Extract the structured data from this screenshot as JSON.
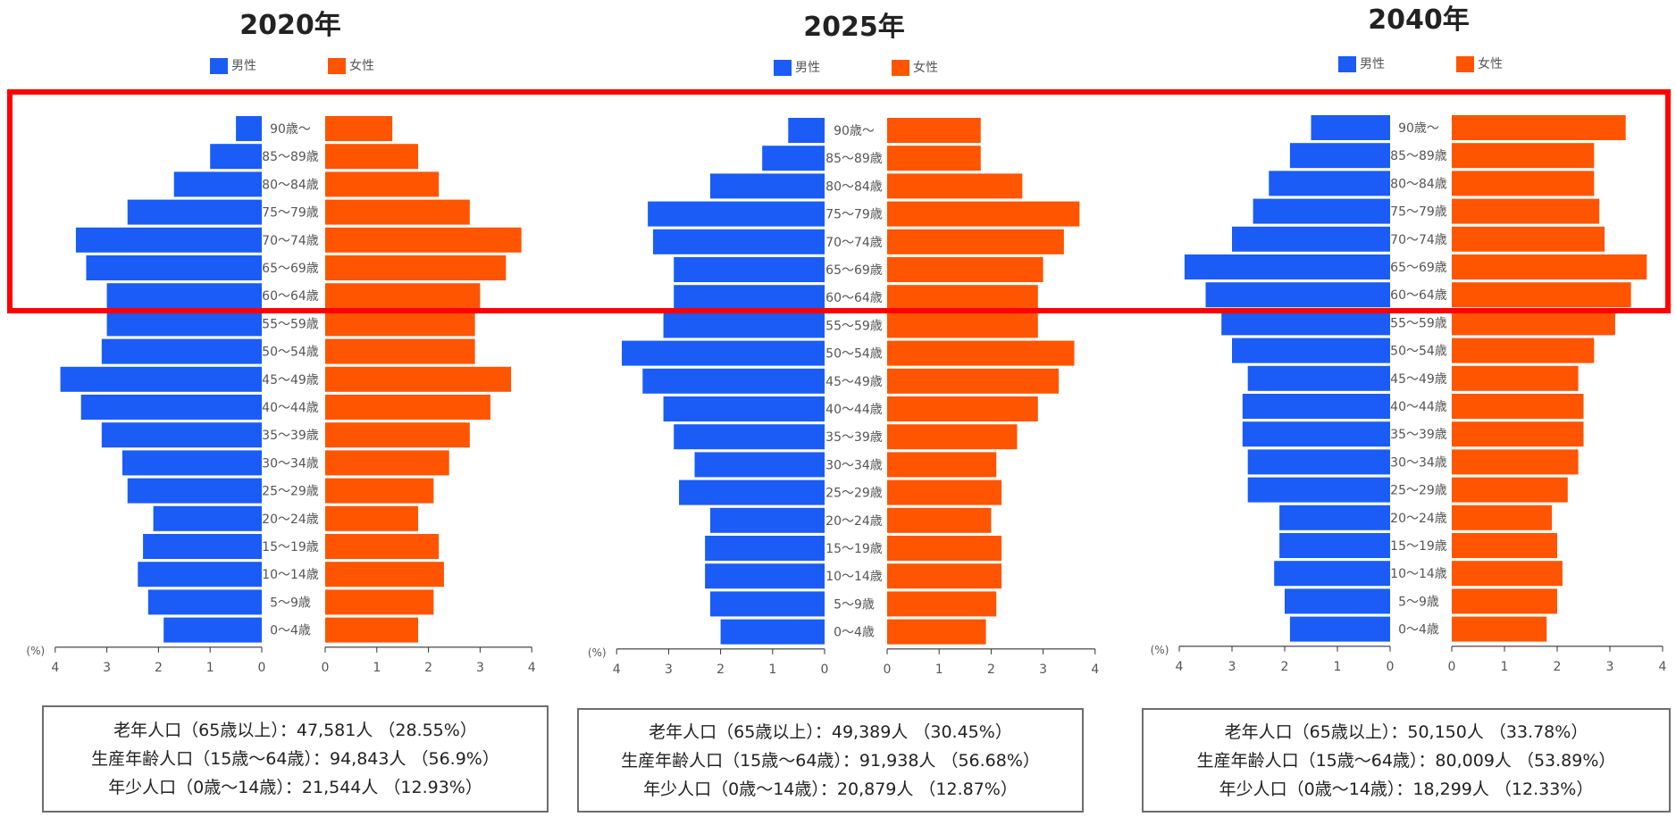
{
  "age_groups": [
    "90歳～",
    "85～89歳",
    "80～84歳",
    "75～79歳",
    "70～74歳",
    "65～69歳",
    "60～64歳",
    "55～59歳",
    "50～54歳",
    "45～49歳",
    "40～44歳",
    "35～39歳",
    "30～34歳",
    "25～29歳",
    "20～24歳",
    "15～19歳",
    "10～14歳",
    "5～9歳",
    "0～4歳"
  ],
  "legend": {
    "male": "男性",
    "female": "女性"
  },
  "axis": {
    "unit": "(%)",
    "ticks_left": [
      "4",
      "3",
      "2",
      "1",
      "0"
    ],
    "ticks_right": [
      "0",
      "1",
      "2",
      "3",
      "4"
    ]
  },
  "colors": {
    "male": "#1a5cf5",
    "female": "#ff5400",
    "highlight": "#ff0000"
  },
  "chart_data": [
    {
      "type": "bar",
      "title": "2020年",
      "xlim": [
        0,
        4
      ],
      "categories": [
        "90歳～",
        "85～89歳",
        "80～84歳",
        "75～79歳",
        "70～74歳",
        "65～69歳",
        "60～64歳",
        "55～59歳",
        "50～54歳",
        "45～49歳",
        "40～44歳",
        "35～39歳",
        "30～34歳",
        "25～29歳",
        "20～24歳",
        "15～19歳",
        "10～14歳",
        "5～9歳",
        "0～4歳"
      ],
      "series": [
        {
          "name": "男性",
          "values": [
            0.5,
            1.0,
            1.7,
            2.6,
            3.6,
            3.4,
            3.0,
            3.0,
            3.1,
            3.9,
            3.5,
            3.1,
            2.7,
            2.6,
            2.1,
            2.3,
            2.4,
            2.2,
            1.9
          ]
        },
        {
          "name": "女性",
          "values": [
            1.3,
            1.8,
            2.2,
            2.8,
            3.8,
            3.5,
            3.0,
            2.9,
            2.9,
            3.6,
            3.2,
            2.8,
            2.4,
            2.1,
            1.8,
            2.2,
            2.3,
            2.1,
            1.8
          ]
        }
      ]
    },
    {
      "type": "bar",
      "title": "2025年",
      "xlim": [
        0,
        4
      ],
      "categories": [
        "90歳～",
        "85～89歳",
        "80～84歳",
        "75～79歳",
        "70～74歳",
        "65～69歳",
        "60～64歳",
        "55～59歳",
        "50～54歳",
        "45～49歳",
        "40～44歳",
        "35～39歳",
        "30～34歳",
        "25～29歳",
        "20～24歳",
        "15～19歳",
        "10～14歳",
        "5～9歳",
        "0～4歳"
      ],
      "series": [
        {
          "name": "男性",
          "values": [
            0.7,
            1.2,
            2.2,
            3.4,
            3.3,
            2.9,
            2.9,
            3.1,
            3.9,
            3.5,
            3.1,
            2.9,
            2.5,
            2.8,
            2.2,
            2.3,
            2.3,
            2.2,
            2.0
          ]
        },
        {
          "name": "女性",
          "values": [
            1.8,
            1.8,
            2.6,
            3.7,
            3.4,
            3.0,
            2.9,
            2.9,
            3.6,
            3.3,
            2.9,
            2.5,
            2.1,
            2.2,
            2.0,
            2.2,
            2.2,
            2.1,
            1.9
          ]
        }
      ]
    },
    {
      "type": "bar",
      "title": "2040年",
      "xlim": [
        0,
        4
      ],
      "categories": [
        "90歳～",
        "85～89歳",
        "80～84歳",
        "75～79歳",
        "70～74歳",
        "65～69歳",
        "60～64歳",
        "55～59歳",
        "50～54歳",
        "45～49歳",
        "40～44歳",
        "35～39歳",
        "30～34歳",
        "25～29歳",
        "20～24歳",
        "15～19歳",
        "10～14歳",
        "5～9歳",
        "0～4歳"
      ],
      "series": [
        {
          "name": "男性",
          "values": [
            1.5,
            1.9,
            2.3,
            2.6,
            3.0,
            3.9,
            3.5,
            3.2,
            3.0,
            2.7,
            2.8,
            2.8,
            2.7,
            2.7,
            2.1,
            2.1,
            2.2,
            2.0,
            1.9
          ]
        },
        {
          "name": "女性",
          "values": [
            3.3,
            2.7,
            2.7,
            2.8,
            2.9,
            3.7,
            3.4,
            3.1,
            2.7,
            2.4,
            2.5,
            2.5,
            2.4,
            2.2,
            1.9,
            2.0,
            2.1,
            2.0,
            1.8
          ]
        }
      ]
    }
  ],
  "summaries": [
    {
      "elderly": "老年人口（65歳以上）：47,581人 （28.55%）",
      "working": "生産年齢人口（15歳～64歳）：94,843人 （56.9%）",
      "young": "年少人口（0歳～14歳）：21,544人 （12.93%）"
    },
    {
      "elderly": "老年人口（65歳以上）：49,389人 （30.45%）",
      "working": "生産年齢人口（15歳～64歳）：91,938人 （56.68%）",
      "young": "年少人口（0歳～14歳）：20,879人 （12.87%）"
    },
    {
      "elderly": "老年人口（65歳以上）：50,150人 （33.78%）",
      "working": "生産年齢人口（15歳～64歳）：80,009人 （53.89%）",
      "young": "年少人口（0歳～14歳）：18,299人 （12.33%）"
    }
  ]
}
